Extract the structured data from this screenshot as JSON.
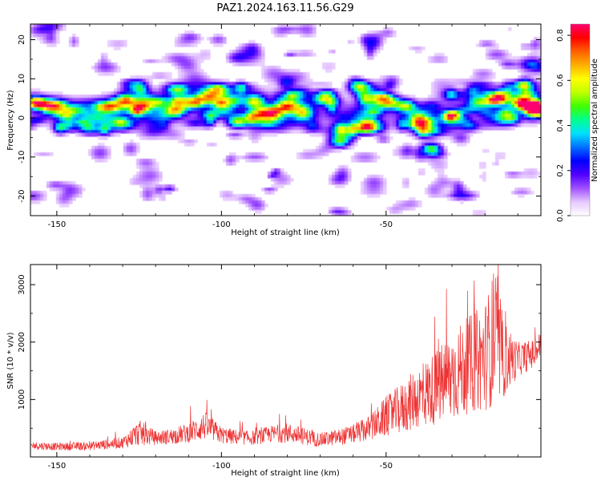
{
  "title": "PAZ1.2024.163.11.56.G29",
  "colors": {
    "snr_line": "#ee3333",
    "colormap": [
      "#ffffff",
      "#e6c8ff",
      "#a050ff",
      "#5000ff",
      "#0000ff",
      "#0070ff",
      "#00e0ff",
      "#00ff90",
      "#40ff00",
      "#c0ff00",
      "#ffff00",
      "#ffb000",
      "#ff6000",
      "#ff0000",
      "#ff0070"
    ]
  },
  "chart_data": [
    {
      "type": "heatmap",
      "xlabel": "Height of straight line (km)",
      "ylabel": "Frequency (Hz)",
      "xlim": [
        -158,
        -3
      ],
      "ylim": [
        -25,
        24
      ],
      "xticks": [
        -150,
        -100,
        -50
      ],
      "yticks": [
        -20,
        -10,
        0,
        10,
        20
      ],
      "colorbar": {
        "label": "Normalized spectral amplitude",
        "range": [
          0,
          0.85
        ],
        "ticks": [
          0.0,
          0.2,
          0.4,
          0.6,
          0.8
        ]
      },
      "ridge": {
        "x": [
          -158,
          -150,
          -140,
          -130,
          -120,
          -110,
          -100,
          -90,
          -80,
          -70,
          -60,
          -50,
          -40,
          -30,
          -20,
          -10,
          -3
        ],
        "freq": [
          3,
          2,
          1,
          3,
          3,
          3,
          4,
          3,
          3,
          2,
          1,
          2,
          0,
          2,
          3,
          4,
          3
        ]
      },
      "blobs": [
        {
          "x": -156,
          "f": 4,
          "a": 0.3
        },
        {
          "x": -152,
          "f": 3,
          "a": 0.45
        },
        {
          "x": -148,
          "f": 1,
          "a": 0.35
        },
        {
          "x": -144,
          "f": 2,
          "a": 0.3
        },
        {
          "x": -138,
          "f": 0,
          "a": 0.25
        },
        {
          "x": -133,
          "f": 3,
          "a": 0.3
        },
        {
          "x": -129,
          "f": 4.5,
          "a": 0.55
        },
        {
          "x": -124,
          "f": 3,
          "a": 0.5
        },
        {
          "x": -119,
          "f": 4,
          "a": 0.35
        },
        {
          "x": -114,
          "f": 2,
          "a": 0.5
        },
        {
          "x": -109,
          "f": 4,
          "a": 0.5
        },
        {
          "x": -104,
          "f": 5,
          "a": 0.45
        },
        {
          "x": -99,
          "f": 4,
          "a": 0.4
        },
        {
          "x": -95,
          "f": -1,
          "a": 0.5
        },
        {
          "x": -90,
          "f": 4,
          "a": 0.4
        },
        {
          "x": -85,
          "f": 1,
          "a": 0.35
        },
        {
          "x": -80,
          "f": 3,
          "a": 0.55
        },
        {
          "x": -75,
          "f": 1,
          "a": 0.3
        },
        {
          "x": -69,
          "f": 5,
          "a": 0.45
        },
        {
          "x": -64,
          "f": -6,
          "a": 0.45
        },
        {
          "x": -58,
          "f": 8,
          "a": 0.45
        },
        {
          "x": -56,
          "f": -2,
          "a": 0.5
        },
        {
          "x": -52,
          "f": 5,
          "a": 0.35
        },
        {
          "x": -49,
          "f": 4,
          "a": 0.45
        },
        {
          "x": -44,
          "f": 3,
          "a": 0.45
        },
        {
          "x": -40,
          "f": -1,
          "a": 0.4
        },
        {
          "x": -36,
          "f": -8,
          "a": 0.35
        },
        {
          "x": -30,
          "f": 0,
          "a": 0.45
        },
        {
          "x": -22,
          "f": 4,
          "a": 0.35
        },
        {
          "x": -16,
          "f": 5,
          "a": 0.6
        },
        {
          "x": -9,
          "f": 4,
          "a": 0.6
        },
        {
          "x": -6,
          "f": 3,
          "a": 0.85
        },
        {
          "x": -3,
          "f": 2,
          "a": 0.75
        }
      ]
    },
    {
      "type": "line",
      "xlabel": "Height of straight line (km)",
      "ylabel": "SNR (10 * v/v)",
      "xlim": [
        -158,
        -3
      ],
      "ylim": [
        0,
        3350
      ],
      "xticks": [
        -150,
        -100,
        -50
      ],
      "yticks": [
        1000,
        2000,
        3000
      ],
      "series": [
        {
          "x": [
            -158,
            -150,
            -140,
            -130,
            -125,
            -120,
            -115,
            -110,
            -105,
            -100,
            -95,
            -90,
            -85,
            -80,
            -75,
            -70,
            -65,
            -60,
            -55,
            -50,
            -45,
            -40,
            -35,
            -30,
            -25,
            -20,
            -17,
            -15,
            -10,
            -5,
            -3
          ],
          "values": [
            200,
            180,
            190,
            250,
            420,
            330,
            360,
            420,
            540,
            380,
            340,
            330,
            400,
            420,
            360,
            300,
            340,
            400,
            500,
            700,
            850,
            1050,
            1200,
            1400,
            1600,
            1750,
            2100,
            1700,
            1700,
            1800,
            1950
          ],
          "spread": [
            150,
            130,
            150,
            200,
            450,
            250,
            280,
            350,
            500,
            300,
            260,
            250,
            300,
            350,
            300,
            250,
            280,
            330,
            450,
            700,
            900,
            1100,
            1300,
            1600,
            1700,
            1900,
            2400,
            1500,
            600,
            500,
            500
          ]
        }
      ]
    }
  ]
}
